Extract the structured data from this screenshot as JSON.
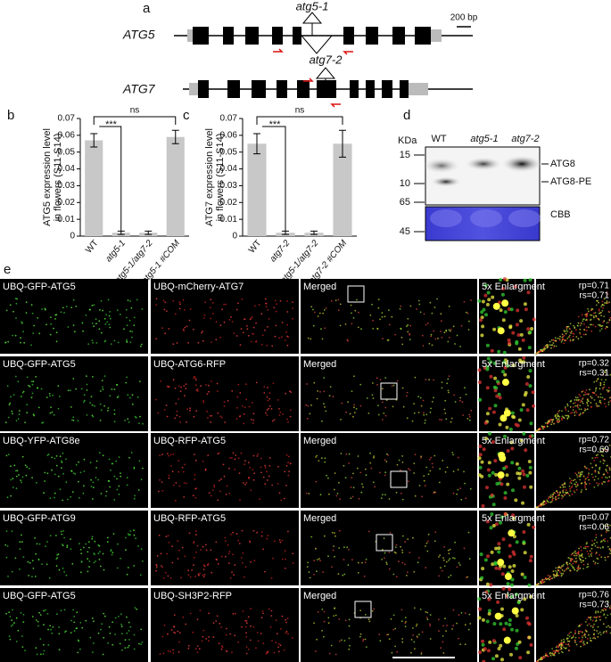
{
  "panel_labels": [
    "a",
    "b",
    "c",
    "d",
    "e"
  ],
  "gene_structure": {
    "genes": [
      {
        "name": "ATG5",
        "mutant": "atg5-1"
      },
      {
        "name": "ATG7",
        "mutant": "atg7-2"
      }
    ],
    "scale": "200 bp"
  },
  "chart_data": [
    {
      "type": "bar",
      "ylabel": [
        "ATG5 expression level",
        "in flowers (S11-S14)"
      ],
      "categories": [
        "WT",
        "atg5-1",
        "atg5-1/atg7-2",
        "atg5-1 #COM"
      ],
      "values": [
        0.057,
        0.002,
        0.002,
        0.059
      ],
      "errors": [
        0.004,
        0.001,
        0.001,
        0.004
      ],
      "color": "#c8c8c8",
      "ylim": [
        0,
        0.07
      ],
      "yticks": [
        0,
        0.01,
        0.02,
        0.03,
        0.04,
        0.05,
        0.06,
        0.07
      ],
      "significance": [
        "***",
        "ns"
      ]
    },
    {
      "type": "bar",
      "ylabel": [
        "ATG7 expression level",
        "in flowers (S11-S14)"
      ],
      "categories": [
        "WT",
        "atg7-2",
        "atg5-1/atg7-2",
        "atg7-2 #COM"
      ],
      "values": [
        0.055,
        0.002,
        0.002,
        0.055
      ],
      "errors": [
        0.006,
        0.001,
        0.001,
        0.008
      ],
      "color": "#c8c8c8",
      "ylim": [
        0,
        0.07
      ],
      "yticks": [
        0,
        0.01,
        0.02,
        0.03,
        0.04,
        0.05,
        0.06,
        0.07
      ],
      "significance": [
        "***",
        "ns"
      ]
    }
  ],
  "western_blot": {
    "unit": "KDa",
    "lanes": [
      "WT",
      "atg5-1",
      "atg7-2"
    ],
    "markers": [
      15,
      10,
      65,
      45
    ],
    "bands": [
      "ATG8",
      "ATG8-PE",
      "CBB"
    ]
  },
  "microscopy": {
    "rows": [
      {
        "labels": [
          "UBQ-GFP-ATG5",
          "UBQ-mCherry-ATG7",
          "Merged",
          "5x Enlargment"
        ],
        "rp": "rp=0.71",
        "rs": "rs=0.71"
      },
      {
        "labels": [
          "UBQ-GFP-ATG5",
          "UBQ-ATG6-RFP",
          "Merged",
          "5x Enlargment"
        ],
        "rp": "rp=0.32",
        "rs": "rs=0.31"
      },
      {
        "labels": [
          "UBQ-YFP-ATG8e",
          "UBQ-RFP-ATG5",
          "Merged",
          "5x Enlargment"
        ],
        "rp": "rp=0.72",
        "rs": "rs=0.69"
      },
      {
        "labels": [
          "UBQ-GFP-ATG9",
          "UBQ-RFP-ATG5",
          "Merged",
          "5x Enlargment"
        ],
        "rp": "rp=0.07",
        "rs": "rs=0.06"
      },
      {
        "labels": [
          "UBQ-GFP-ATG5",
          "UBQ-SH3P2-RFP",
          "Merged",
          "5x Enlargment"
        ],
        "rp": "rp=0.76",
        "rs": "rs=0.73"
      }
    ]
  }
}
